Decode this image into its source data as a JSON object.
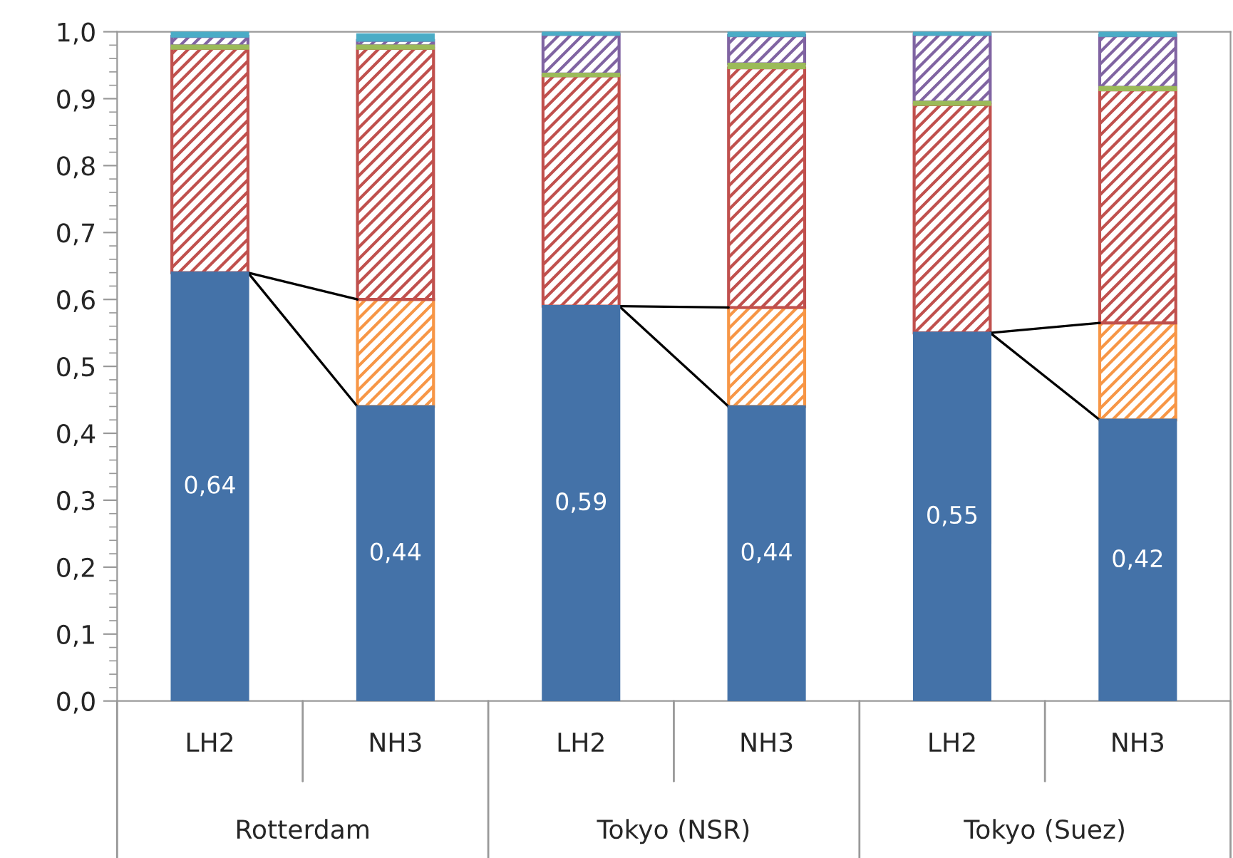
{
  "chart_data": {
    "type": "bar",
    "stacked": true,
    "categories": [
      "LH2",
      "NH3",
      "LH2",
      "NH3",
      "LH2",
      "NH3"
    ],
    "series": [
      {
        "color": "#4472a8",
        "values": [
          0.64,
          0.44,
          0.59,
          0.44,
          0.55,
          0.42
        ],
        "value_labels": [
          "0,64",
          "0,44",
          "0,59",
          "0,44",
          "0,55",
          "0,42"
        ]
      },
      {
        "color": "#f79646",
        "values": [
          null,
          0.16,
          null,
          0.148,
          null,
          0.145
        ]
      },
      {
        "color": "#c0504d",
        "values": [
          0.335,
          0.375,
          0.344,
          0.358,
          0.341,
          0.348
        ]
      },
      {
        "color": "#9bbb59",
        "values": [
          0.004,
          0.004,
          0.003,
          0.006,
          0.004,
          0.004
        ]
      },
      {
        "color": "#8064a2",
        "values": [
          0.014,
          0.008,
          0.059,
          0.042,
          0.101,
          0.077
        ]
      },
      {
        "color": "#4bacc6",
        "values": [
          0.007,
          0.009,
          0.004,
          0.006,
          0.004,
          0.006
        ]
      }
    ],
    "annotations": [
      "Rotterdam",
      "Tokyo (NSR)",
      "Tokyo (Suez)"
    ],
    "ylim": [
      0,
      1.0
    ],
    "yticks": [
      {
        "value": 0,
        "label": "0,0"
      },
      {
        "value": 0.1,
        "label": "0,1"
      },
      {
        "value": 0.2,
        "label": "0,2"
      },
      {
        "value": 0.3,
        "label": "0,3"
      },
      {
        "value": 0.4,
        "label": "0,4"
      },
      {
        "value": 0.5,
        "label": "0,5"
      },
      {
        "value": 0.6,
        "label": "0,6"
      },
      {
        "value": 0.7,
        "label": "0,7"
      },
      {
        "value": 0.8,
        "label": "0,8"
      },
      {
        "value": 0.9,
        "label": "0,9"
      },
      {
        "value": 1.0,
        "label": "1,0"
      }
    ],
    "grid": false
  }
}
